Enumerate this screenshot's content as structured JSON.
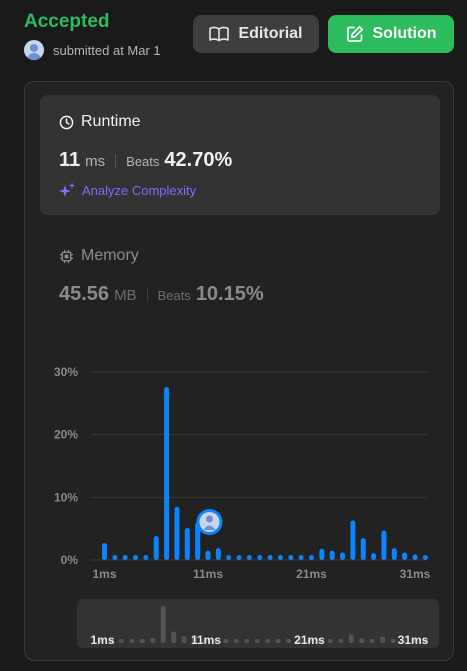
{
  "header": {
    "status": "Accepted",
    "submitted_text": "submitted at Mar 1",
    "editorial_label": "Editorial",
    "solution_label": "Solution"
  },
  "runtime": {
    "title": "Runtime",
    "value": "11",
    "unit": "ms",
    "beats_label": "Beats",
    "beats_value": "42.70%",
    "analyze_label": "Analyze Complexity"
  },
  "memory": {
    "title": "Memory",
    "value": "45.56",
    "unit": "MB",
    "beats_label": "Beats",
    "beats_value": "10.15%"
  },
  "colors": {
    "accepted": "#2cbb5d",
    "bar": "#0a84ff",
    "analyze": "#7c6ef6"
  },
  "chart_data": {
    "type": "bar",
    "title": "",
    "xlabel": "",
    "ylabel": "",
    "y_ticks": [
      "30%",
      "20%",
      "10%",
      "0%"
    ],
    "ylim": [
      0,
      30
    ],
    "x_tick_labels": [
      "1ms",
      "11ms",
      "21ms",
      "31ms"
    ],
    "x_ticks_at": [
      1,
      11,
      21,
      31
    ],
    "categories": [
      1,
      2,
      3,
      4,
      5,
      6,
      7,
      8,
      9,
      10,
      11,
      12,
      13,
      14,
      15,
      16,
      17,
      18,
      19,
      20,
      21,
      22,
      23,
      24,
      25,
      26,
      27,
      28,
      29,
      30,
      31,
      32
    ],
    "values": [
      2.7,
      0.8,
      0.8,
      0.8,
      0.8,
      3.8,
      27.6,
      8.5,
      5.1,
      6.0,
      1.5,
      1.9,
      0.8,
      0.8,
      0.8,
      0.8,
      0.8,
      0.8,
      0.8,
      0.8,
      0.8,
      1.8,
      1.5,
      1.2,
      6.3,
      3.5,
      1.1,
      4.7,
      1.9,
      1.2,
      0.9,
      0.8
    ],
    "user_value_ms": 11,
    "grid": true
  }
}
